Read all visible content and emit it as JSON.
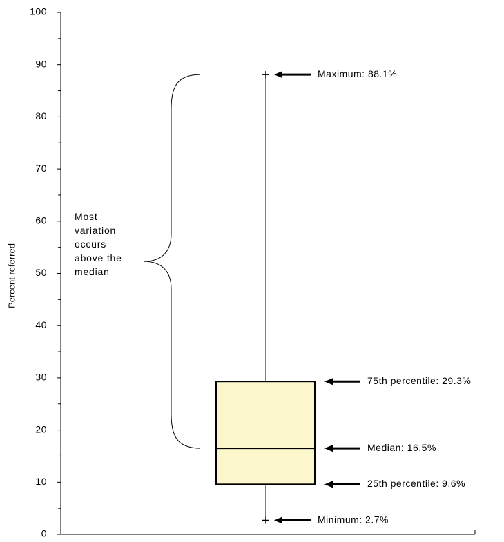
{
  "chart_data": {
    "type": "box",
    "ylabel": "Percent referred",
    "ylim": [
      0,
      100
    ],
    "yticks": [
      0,
      10,
      20,
      30,
      40,
      50,
      60,
      70,
      80,
      90,
      100
    ],
    "values": {
      "min": 2.7,
      "q1": 9.6,
      "median": 16.5,
      "q3": 29.3,
      "max": 88.1
    },
    "value_labels": {
      "min": "Minimum: 2.7%",
      "q1": "25th percentile: 9.6%",
      "median": "Median: 16.5%",
      "q3": "75th percentile: 29.3%",
      "max": "Maximum: 88.1%"
    },
    "color": "#fcf6cc",
    "annotation": "Most variation occurs above the median"
  }
}
